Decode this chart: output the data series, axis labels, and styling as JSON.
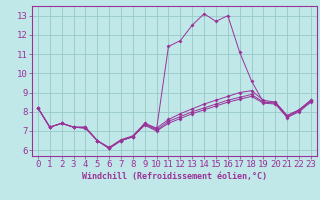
{
  "xlabel": "Windchill (Refroidissement éolien,°C)",
  "bg_color": "#c0e8e8",
  "grid_color": "#98c8c8",
  "line_color": "#993399",
  "spine_color": "#993399",
  "ylim": [
    5.7,
    13.5
  ],
  "xlim": [
    -0.5,
    23.5
  ],
  "yticks": [
    6,
    7,
    8,
    9,
    10,
    11,
    12,
    13
  ],
  "xticks": [
    0,
    1,
    2,
    3,
    4,
    5,
    6,
    7,
    8,
    9,
    10,
    11,
    12,
    13,
    14,
    15,
    16,
    17,
    18,
    19,
    20,
    21,
    22,
    23
  ],
  "lines": [
    [
      8.2,
      7.2,
      7.4,
      7.2,
      7.2,
      6.5,
      6.1,
      6.5,
      6.7,
      7.4,
      7.1,
      11.4,
      11.7,
      12.5,
      13.1,
      12.7,
      13.0,
      11.1,
      9.6,
      8.5,
      8.5,
      7.8,
      8.1,
      8.6
    ],
    [
      8.2,
      7.2,
      7.4,
      7.2,
      7.2,
      6.5,
      6.15,
      6.55,
      6.75,
      7.4,
      7.15,
      7.6,
      7.9,
      8.15,
      8.4,
      8.6,
      8.8,
      9.0,
      9.1,
      8.6,
      8.5,
      7.8,
      8.1,
      8.6
    ],
    [
      8.2,
      7.2,
      7.4,
      7.2,
      7.15,
      6.5,
      6.1,
      6.5,
      6.7,
      7.35,
      7.05,
      7.5,
      7.75,
      8.0,
      8.2,
      8.4,
      8.6,
      8.75,
      8.9,
      8.5,
      8.45,
      7.75,
      8.05,
      8.55
    ],
    [
      8.2,
      7.2,
      7.4,
      7.2,
      7.15,
      6.5,
      6.1,
      6.5,
      6.7,
      7.3,
      7.0,
      7.4,
      7.65,
      7.9,
      8.1,
      8.3,
      8.5,
      8.65,
      8.8,
      8.45,
      8.4,
      7.7,
      8.0,
      8.5
    ]
  ],
  "xlabel_fontsize": 6,
  "tick_fontsize": 6.5,
  "marker_size": 2.0
}
